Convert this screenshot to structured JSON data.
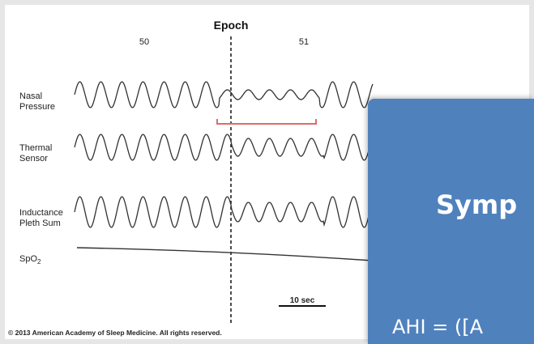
{
  "figure": {
    "heading": "Epoch",
    "epochs": [
      "50",
      "51"
    ],
    "signals": [
      {
        "line1": "Nasal",
        "line2": "Pressure"
      },
      {
        "line1": "Thermal",
        "line2": "Sensor"
      },
      {
        "line1": "Inductance",
        "line2": "Pleth Sum"
      },
      {
        "line1": "SpO",
        "sub": "2"
      }
    ],
    "scale_bar": "10 sec",
    "copyright": "© 2013 American Academy of Sleep Medicine. All rights reserved.",
    "bracket_color": "#e06a6a"
  },
  "slide": {
    "title": "Symp",
    "body": "AHI = ([A",
    "color": "#4f81bd"
  }
}
